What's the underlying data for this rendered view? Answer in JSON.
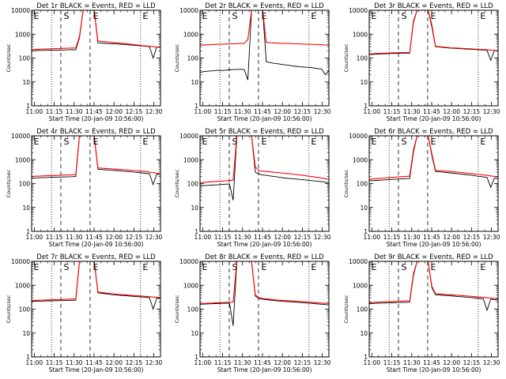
{
  "chart_data": [
    {
      "type": "line",
      "title": "Det 1r BLACK = Events, RED = LLD",
      "xlabel": "Start Time (20-Jan-09 10:56:00)",
      "ylabel": "Counts/sec",
      "ylog": true,
      "ylim": [
        1,
        10000
      ],
      "y_ticks": [
        "1",
        "10",
        "100",
        "1000",
        "10000"
      ],
      "x_ticks": [
        "11:00",
        "11:15",
        "11:30",
        "11:45",
        "12:00",
        "12:15",
        "12:30"
      ],
      "x_range": [
        "10:58",
        "12:35"
      ],
      "markers": [
        "E",
        "S",
        "E",
        "E"
      ],
      "series": [
        {
          "color": "#000000",
          "values": [
            200,
            205,
            208,
            210,
            212,
            215,
            212,
            214,
            216,
            218,
            220,
            222,
            220,
            700,
            10000,
            10000,
            10000,
            10000,
            430,
            420,
            410,
            400,
            395,
            390,
            380,
            370,
            360,
            350,
            340,
            330,
            320,
            310,
            300,
            100,
            290,
            280
          ]
        },
        {
          "color": "#ff0000",
          "values": [
            225,
            228,
            232,
            236,
            240,
            243,
            246,
            250,
            253,
            256,
            259,
            262,
            265,
            800,
            10000,
            10000,
            10000,
            10000,
            520,
            500,
            480,
            465,
            450,
            435,
            420,
            405,
            390,
            375,
            360,
            345,
            330,
            320,
            310,
            300,
            290,
            285
          ]
        }
      ]
    },
    {
      "type": "line",
      "title": "Det 2r BLACK = Events, RED = LLD",
      "xlabel": "Start Time (20-Jan-09 10:56:00)",
      "ylabel": "Counts/sec",
      "ylog": true,
      "ylim": [
        1,
        10000
      ],
      "y_ticks": [
        "1",
        "10",
        "100",
        "1000",
        "10000"
      ],
      "x_ticks": [
        "11:00",
        "11:15",
        "11:30",
        "11:45",
        "12:00",
        "12:15",
        "12:30"
      ],
      "x_range": [
        "10:58",
        "12:35"
      ],
      "markers": [
        "E",
        "S",
        "E",
        "E"
      ],
      "series": [
        {
          "color": "#000000",
          "values": [
            25,
            27,
            28,
            29,
            30,
            31,
            30,
            31,
            32,
            33,
            33,
            34,
            33,
            12,
            10000,
            10000,
            10000,
            10000,
            70,
            65,
            60,
            58,
            55,
            52,
            50,
            47,
            45,
            43,
            42,
            41,
            40,
            38,
            36,
            35,
            20,
            30
          ]
        },
        {
          "color": "#ff0000",
          "values": [
            350,
            355,
            360,
            365,
            370,
            375,
            380,
            385,
            390,
            395,
            400,
            405,
            410,
            600,
            10000,
            10000,
            10000,
            10000,
            450,
            440,
            430,
            420,
            415,
            410,
            405,
            400,
            395,
            390,
            385,
            380,
            375,
            370,
            365,
            360,
            355,
            350
          ]
        }
      ]
    },
    {
      "type": "line",
      "title": "Det 3r BLACK = Events, RED = LLD",
      "xlabel": "Start Time (20-Jan-09 10:56:00)",
      "ylabel": "Counts/sec",
      "ylog": true,
      "ylim": [
        1,
        10000
      ],
      "y_ticks": [
        "1",
        "10",
        "100",
        "1000",
        "10000"
      ],
      "x_ticks": [
        "11:00",
        "11:15",
        "11:30",
        "11:45",
        "12:00",
        "12:15",
        "12:30"
      ],
      "x_range": [
        "10:58",
        "12:35"
      ],
      "markers": [
        "E",
        "S",
        "E",
        "E"
      ],
      "series": [
        {
          "color": "#000000",
          "values": [
            140,
            142,
            145,
            148,
            150,
            152,
            154,
            156,
            158,
            160,
            160,
            160,
            3000,
            10000,
            10000,
            10000,
            10000,
            2000,
            300,
            290,
            280,
            270,
            260,
            255,
            250,
            245,
            240,
            235,
            230,
            225,
            220,
            215,
            210,
            80,
            205,
            200
          ]
        },
        {
          "color": "#ff0000",
          "values": [
            150,
            152,
            155,
            158,
            160,
            162,
            164,
            166,
            168,
            170,
            170,
            170,
            3500,
            10000,
            10000,
            10000,
            10000,
            2500,
            310,
            300,
            290,
            280,
            270,
            265,
            260,
            255,
            250,
            245,
            240,
            235,
            230,
            225,
            220,
            215,
            210,
            205
          ]
        }
      ]
    },
    {
      "type": "line",
      "title": "Det 4r BLACK = Events, RED = LLD",
      "xlabel": "Start Time (20-Jan-09 10:56:00)",
      "ylabel": "Counts/sec",
      "ylog": true,
      "ylim": [
        1,
        10000
      ],
      "y_ticks": [
        "1",
        "10",
        "100",
        "1000",
        "10000"
      ],
      "x_ticks": [
        "11:00",
        "11:15",
        "11:30",
        "11:45",
        "12:00",
        "12:15",
        "12:30"
      ],
      "x_range": [
        "10:58",
        "12:35"
      ],
      "markers": [
        "E",
        "S",
        "E",
        "E"
      ],
      "series": [
        {
          "color": "#000000",
          "values": [
            170,
            172,
            175,
            178,
            180,
            182,
            184,
            186,
            188,
            190,
            192,
            194,
            200,
            10000,
            10000,
            10000,
            10000,
            10000,
            400,
            390,
            380,
            370,
            360,
            350,
            340,
            330,
            320,
            310,
            300,
            290,
            280,
            270,
            260,
            90,
            250,
            240
          ]
        },
        {
          "color": "#ff0000",
          "values": [
            200,
            203,
            206,
            209,
            212,
            215,
            218,
            221,
            224,
            227,
            230,
            233,
            240,
            10000,
            10000,
            10000,
            10000,
            10000,
            450,
            440,
            430,
            420,
            410,
            400,
            390,
            380,
            370,
            360,
            350,
            340,
            330,
            320,
            300,
            290,
            270,
            250
          ]
        }
      ]
    },
    {
      "type": "line",
      "title": "Det 5r BLACK = Events, RED = LLD",
      "xlabel": "Start Time (20-Jan-09 10:56:00)",
      "ylabel": "Counts/sec",
      "ylog": true,
      "ylim": [
        1,
        10000
      ],
      "y_ticks": [
        "1",
        "10",
        "100",
        "1000",
        "10000"
      ],
      "x_ticks": [
        "11:00",
        "11:15",
        "11:30",
        "11:45",
        "12:00",
        "12:15",
        "12:30"
      ],
      "x_range": [
        "10:58",
        "12:35"
      ],
      "markers": [
        "E",
        "S",
        "E",
        "E"
      ],
      "series": [
        {
          "color": "#000000",
          "values": [
            80,
            82,
            84,
            86,
            88,
            90,
            92,
            94,
            96,
            20,
            10000,
            10000,
            10000,
            10000,
            10000,
            300,
            250,
            230,
            220,
            210,
            200,
            190,
            180,
            170,
            165,
            160,
            155,
            150,
            145,
            140,
            135,
            130,
            125,
            120,
            115,
            110
          ]
        },
        {
          "color": "#ff0000",
          "values": [
            110,
            113,
            116,
            119,
            122,
            125,
            128,
            131,
            134,
            140,
            10000,
            10000,
            10000,
            10000,
            10000,
            500,
            350,
            330,
            320,
            310,
            300,
            290,
            280,
            270,
            260,
            250,
            240,
            230,
            220,
            210,
            200,
            190,
            180,
            170,
            160,
            150
          ]
        }
      ]
    },
    {
      "type": "line",
      "title": "Det 6r BLACK = Events, RED = LLD",
      "xlabel": "Start Time (20-Jan-09 10:56:00)",
      "ylabel": "Counts/sec",
      "ylog": true,
      "ylim": [
        1,
        10000
      ],
      "y_ticks": [
        "1",
        "10",
        "100",
        "1000",
        "10000"
      ],
      "x_ticks": [
        "11:00",
        "11:15",
        "11:30",
        "11:45",
        "12:00",
        "12:15",
        "12:30"
      ],
      "x_range": [
        "10:58",
        "12:35"
      ],
      "markers": [
        "E",
        "S",
        "E",
        "E"
      ],
      "series": [
        {
          "color": "#000000",
          "values": [
            130,
            133,
            136,
            139,
            142,
            145,
            148,
            151,
            154,
            157,
            160,
            163,
            2000,
            10000,
            10000,
            10000,
            10000,
            1500,
            320,
            310,
            300,
            290,
            280,
            270,
            260,
            250,
            240,
            230,
            220,
            210,
            200,
            190,
            180,
            70,
            170,
            160
          ]
        },
        {
          "color": "#ff0000",
          "values": [
            150,
            155,
            160,
            165,
            170,
            175,
            180,
            185,
            190,
            195,
            200,
            205,
            2500,
            10000,
            10000,
            10000,
            10000,
            1800,
            360,
            350,
            340,
            330,
            320,
            310,
            300,
            290,
            280,
            270,
            260,
            250,
            240,
            230,
            220,
            210,
            200,
            190
          ]
        }
      ]
    },
    {
      "type": "line",
      "title": "Det 7r BLACK = Events, RED = LLD",
      "xlabel": "Start Time (20-Jan-09 10:56:00)",
      "ylabel": "Counts/sec",
      "ylog": true,
      "ylim": [
        1,
        10000
      ],
      "y_ticks": [
        "1",
        "10",
        "100",
        "1000",
        "10000"
      ],
      "x_ticks": [
        "11:00",
        "11:15",
        "11:30",
        "11:45",
        "12:00",
        "12:15",
        "12:30"
      ],
      "x_range": [
        "10:58",
        "12:35"
      ],
      "markers": [
        "E",
        "S",
        "E",
        "E"
      ],
      "series": [
        {
          "color": "#000000",
          "values": [
            210,
            212,
            215,
            218,
            220,
            222,
            224,
            226,
            228,
            230,
            232,
            234,
            236,
            10000,
            10000,
            10000,
            10000,
            10000,
            480,
            460,
            440,
            420,
            400,
            390,
            380,
            370,
            360,
            350,
            340,
            330,
            320,
            310,
            300,
            100,
            290,
            280
          ]
        },
        {
          "color": "#ff0000",
          "values": [
            230,
            233,
            236,
            239,
            242,
            245,
            248,
            251,
            254,
            257,
            260,
            263,
            266,
            10000,
            10000,
            10000,
            10000,
            10000,
            520,
            500,
            480,
            460,
            440,
            425,
            410,
            400,
            390,
            380,
            370,
            360,
            350,
            340,
            330,
            320,
            310,
            300
          ]
        }
      ]
    },
    {
      "type": "line",
      "title": "Det 8r BLACK = Events, RED = LLD",
      "xlabel": "Start Time (20-Jan-09 10:56:00)",
      "ylabel": "Counts/sec",
      "ylog": true,
      "ylim": [
        1,
        10000
      ],
      "y_ticks": [
        "1",
        "10",
        "100",
        "1000",
        "10000"
      ],
      "x_ticks": [
        "11:00",
        "11:15",
        "11:30",
        "11:45",
        "12:00",
        "12:15",
        "12:30"
      ],
      "x_range": [
        "10:58",
        "12:35"
      ],
      "markers": [
        "E",
        "S",
        "E",
        "E"
      ],
      "series": [
        {
          "color": "#000000",
          "values": [
            160,
            162,
            165,
            168,
            170,
            172,
            174,
            176,
            178,
            20,
            10000,
            10000,
            10000,
            10000,
            10000,
            350,
            280,
            260,
            250,
            240,
            230,
            220,
            215,
            210,
            205,
            200,
            195,
            190,
            185,
            180,
            175,
            170,
            165,
            160,
            155,
            150
          ]
        },
        {
          "color": "#ff0000",
          "values": [
            170,
            173,
            176,
            179,
            182,
            185,
            188,
            191,
            194,
            200,
            10000,
            10000,
            10000,
            10000,
            10000,
            400,
            300,
            280,
            270,
            260,
            250,
            240,
            235,
            230,
            225,
            220,
            215,
            210,
            205,
            200,
            195,
            190,
            185,
            180,
            175,
            170
          ]
        }
      ]
    },
    {
      "type": "line",
      "title": "Det 9r BLACK = Events, RED = LLD",
      "xlabel": "Start Time (20-Jan-09 10:56:00)",
      "ylabel": "Counts/sec",
      "ylog": true,
      "ylim": [
        1,
        10000
      ],
      "y_ticks": [
        "1",
        "10",
        "100",
        "1000",
        "10000"
      ],
      "x_ticks": [
        "11:00",
        "11:15",
        "11:30",
        "11:45",
        "12:00",
        "12:15",
        "12:30"
      ],
      "x_range": [
        "10:58",
        "12:35"
      ],
      "markers": [
        "E",
        "S",
        "E",
        "E"
      ],
      "series": [
        {
          "color": "#000000",
          "values": [
            170,
            172,
            175,
            178,
            180,
            182,
            184,
            186,
            188,
            190,
            192,
            194,
            2500,
            10000,
            10000,
            10000,
            10000,
            800,
            400,
            390,
            380,
            370,
            360,
            350,
            340,
            330,
            320,
            310,
            300,
            290,
            280,
            270,
            90,
            260,
            250,
            240
          ]
        },
        {
          "color": "#ff0000",
          "values": [
            190,
            193,
            196,
            199,
            202,
            205,
            208,
            211,
            214,
            217,
            220,
            223,
            3000,
            10000,
            10000,
            10000,
            10000,
            900,
            440,
            430,
            420,
            410,
            400,
            390,
            380,
            370,
            360,
            350,
            340,
            330,
            320,
            310,
            300,
            290,
            280,
            270
          ]
        }
      ]
    }
  ]
}
